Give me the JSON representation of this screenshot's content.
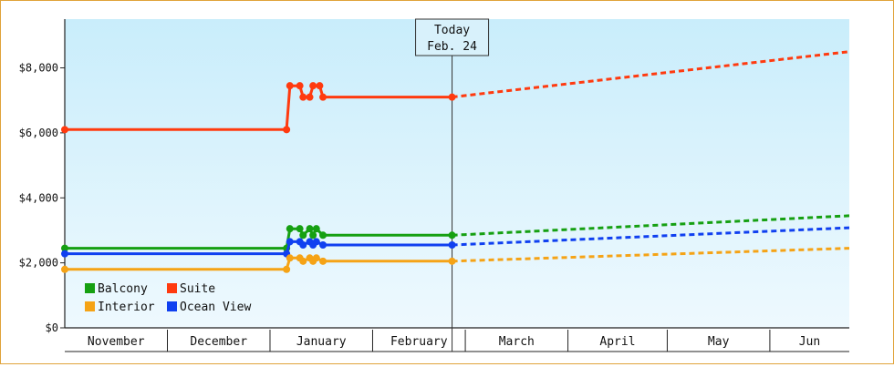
{
  "chart_data": {
    "type": "line",
    "title": "",
    "xlabel": "",
    "ylabel": "",
    "ylim": [
      0,
      9500
    ],
    "x_range": [
      "2012-10-30",
      "2013-06-24"
    ],
    "y_ticks": [
      {
        "value": 0,
        "label": "$0"
      },
      {
        "value": 2000,
        "label": "$2,000"
      },
      {
        "value": 4000,
        "label": "$4,000"
      },
      {
        "value": 6000,
        "label": "$6,000"
      },
      {
        "value": 8000,
        "label": "$8,000"
      }
    ],
    "month_bands": [
      {
        "label": "November",
        "start": "2012-10-30",
        "end": "2012-11-30"
      },
      {
        "label": "December",
        "start": "2012-11-30",
        "end": "2012-12-31"
      },
      {
        "label": "January",
        "start": "2012-12-31",
        "end": "2013-01-31"
      },
      {
        "label": "February",
        "start": "2013-01-31",
        "end": "2013-02-28"
      },
      {
        "label": "March",
        "start": "2013-02-28",
        "end": "2013-03-31"
      },
      {
        "label": "April",
        "start": "2013-03-31",
        "end": "2013-04-30"
      },
      {
        "label": "May",
        "start": "2013-04-30",
        "end": "2013-05-31"
      },
      {
        "label": "Jun",
        "start": "2013-05-31",
        "end": "2013-06-24"
      }
    ],
    "today_marker": {
      "date": "2013-02-24",
      "line1": "Today",
      "line2": "Feb. 24"
    },
    "grid": false,
    "legend_position": "bottom-left",
    "series": [
      {
        "name": "Suite",
        "color": "#ff3a0f",
        "points": [
          {
            "x": "2012-10-30",
            "y": 6100
          },
          {
            "x": "2013-01-05",
            "y": 6100
          },
          {
            "x": "2013-01-06",
            "y": 7450
          },
          {
            "x": "2013-01-09",
            "y": 7450
          },
          {
            "x": "2013-01-10",
            "y": 7100
          },
          {
            "x": "2013-01-12",
            "y": 7100
          },
          {
            "x": "2013-01-13",
            "y": 7450
          },
          {
            "x": "2013-01-15",
            "y": 7450
          },
          {
            "x": "2013-01-16",
            "y": 7100
          },
          {
            "x": "2013-02-24",
            "y": 7100
          }
        ],
        "forecast": [
          {
            "x": "2013-02-24",
            "y": 7100
          },
          {
            "x": "2013-06-24",
            "y": 8500
          }
        ]
      },
      {
        "name": "Balcony",
        "color": "#16a012",
        "points": [
          {
            "x": "2012-10-30",
            "y": 2450
          },
          {
            "x": "2013-01-05",
            "y": 2450
          },
          {
            "x": "2013-01-06",
            "y": 3050
          },
          {
            "x": "2013-01-09",
            "y": 3050
          },
          {
            "x": "2013-01-10",
            "y": 2850
          },
          {
            "x": "2013-01-12",
            "y": 3050
          },
          {
            "x": "2013-01-13",
            "y": 2850
          },
          {
            "x": "2013-01-14",
            "y": 3050
          },
          {
            "x": "2013-01-16",
            "y": 2850
          },
          {
            "x": "2013-02-24",
            "y": 2850
          }
        ],
        "forecast": [
          {
            "x": "2013-02-24",
            "y": 2850
          },
          {
            "x": "2013-06-24",
            "y": 3450
          }
        ]
      },
      {
        "name": "Ocean View",
        "color": "#1040f0",
        "points": [
          {
            "x": "2012-10-30",
            "y": 2280
          },
          {
            "x": "2013-01-05",
            "y": 2280
          },
          {
            "x": "2013-01-06",
            "y": 2650
          },
          {
            "x": "2013-01-09",
            "y": 2650
          },
          {
            "x": "2013-01-10",
            "y": 2550
          },
          {
            "x": "2013-01-12",
            "y": 2650
          },
          {
            "x": "2013-01-13",
            "y": 2550
          },
          {
            "x": "2013-01-14",
            "y": 2650
          },
          {
            "x": "2013-01-16",
            "y": 2550
          },
          {
            "x": "2013-02-24",
            "y": 2550
          }
        ],
        "forecast": [
          {
            "x": "2013-02-24",
            "y": 2550
          },
          {
            "x": "2013-06-24",
            "y": 3080
          }
        ]
      },
      {
        "name": "Interior",
        "color": "#f5a316",
        "points": [
          {
            "x": "2012-10-30",
            "y": 1800
          },
          {
            "x": "2013-01-05",
            "y": 1800
          },
          {
            "x": "2013-01-06",
            "y": 2150
          },
          {
            "x": "2013-01-09",
            "y": 2150
          },
          {
            "x": "2013-01-10",
            "y": 2050
          },
          {
            "x": "2013-01-12",
            "y": 2150
          },
          {
            "x": "2013-01-13",
            "y": 2050
          },
          {
            "x": "2013-01-14",
            "y": 2150
          },
          {
            "x": "2013-01-16",
            "y": 2050
          },
          {
            "x": "2013-02-24",
            "y": 2050
          }
        ],
        "forecast": [
          {
            "x": "2013-02-24",
            "y": 2050
          },
          {
            "x": "2013-06-24",
            "y": 2450
          }
        ]
      }
    ],
    "legend_order": [
      [
        "Balcony",
        "Suite"
      ],
      [
        "Interior",
        "Ocean View"
      ]
    ]
  }
}
